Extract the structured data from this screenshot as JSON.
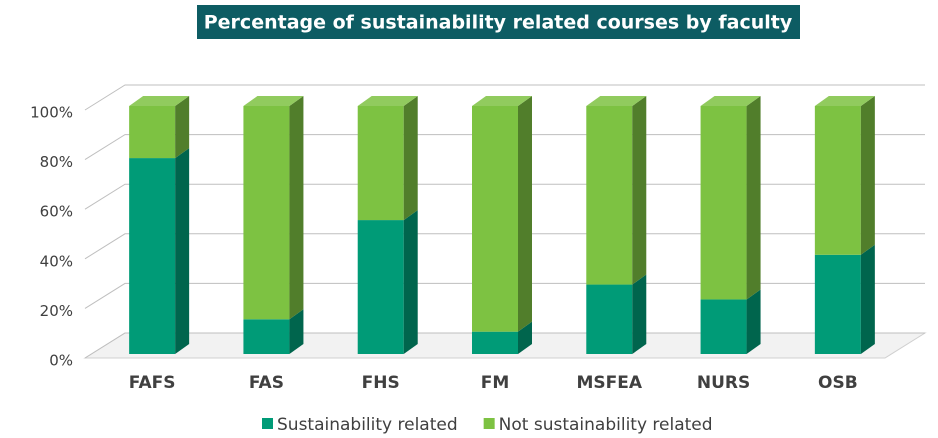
{
  "chart_data": {
    "type": "bar",
    "stacked": true,
    "title": "Percentage of sustainability related courses by faculty",
    "categories": [
      "FAFS",
      "FAS",
      "FHS",
      "FM",
      "MSFEA",
      "NURS",
      "OSB"
    ],
    "series": [
      {
        "name": "Sustainability related",
        "color": "#009b77",
        "values": [
          79,
          14,
          54,
          9,
          28,
          22,
          40
        ]
      },
      {
        "name": "Not sustainability related",
        "color": "#7dc242",
        "values": [
          21,
          86,
          46,
          91,
          72,
          78,
          60
        ]
      }
    ],
    "ylim": [
      0,
      100
    ],
    "yticks": [
      {
        "value": 0,
        "label": "0%"
      },
      {
        "value": 20,
        "label": "20%"
      },
      {
        "value": 40,
        "label": "40%"
      },
      {
        "value": 60,
        "label": "60%"
      },
      {
        "value": 80,
        "label": "80%"
      },
      {
        "value": 100,
        "label": "100%"
      }
    ],
    "grid": true,
    "legend": "bottom"
  }
}
